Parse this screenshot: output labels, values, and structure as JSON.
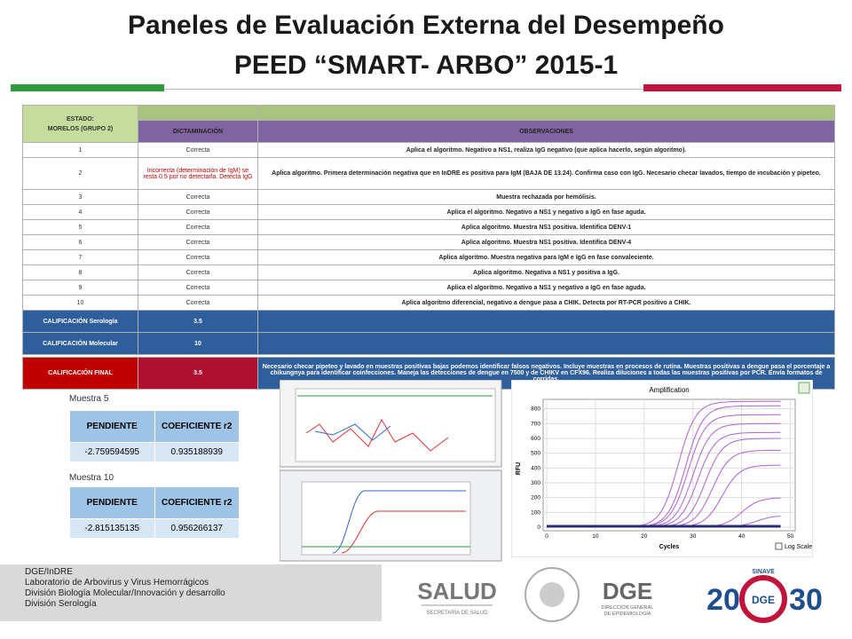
{
  "header": {
    "title_line1": "Paneles de Evaluación Externa del Desempeño",
    "title_line2": "PEED “SMART- ARBO” 2015-1"
  },
  "table": {
    "state_label": "ESTADO:",
    "state_value": "MORELOS (GRUPO 2)",
    "columns": [
      "DICTAMINACIÓN",
      "OBSERVACIONES"
    ],
    "rows": [
      [
        "1",
        "Correcta",
        "Aplica el algoritmo. Negativo a NS1, realiza IgG negativo (que aplica hacerlo, según algoritmo)."
      ],
      [
        "2",
        "Incorrecta (determinación de IgM) se resta 0.5 por no detectarla. Detecta IgG",
        "Aplica algoritmo. Primera determinación negativa que en InDRE es positiva para IgM (BAJA DE 13.24). Confirma caso con IgG. Necesario checar lavados, tiempo de incubación y pipeteo."
      ],
      [
        "3",
        "Correcta",
        "Muestra rechazada por hemólisis."
      ],
      [
        "4",
        "Correcta",
        "Aplica el algoritmo. Negativo a NS1 y negativo a IgG en fase aguda."
      ],
      [
        "5",
        "Correcta",
        "Aplica algoritmo. Muestra NS1 positiva. Identifica DENV-1"
      ],
      [
        "6",
        "Correcta",
        "Aplica algoritmo. Muestra NS1 positiva. Identifica DENV-4"
      ],
      [
        "7",
        "Correcta",
        "Aplica algoritmo. Muestra negativa para IgM e IgG en fase convaleciente."
      ],
      [
        "8",
        "Correcta",
        "Aplica algoritmo. Negativa a NS1 y positiva a IgG."
      ],
      [
        "9",
        "Correcta",
        "Aplica el algoritmo. Negativo a NS1 y negativo a IgG en fase aguda."
      ],
      [
        "10",
        "Correcta",
        "Aplica algoritmo diferencial, negativo a dengue pasa a CHIK. Detecta por RT-PCR positivo a CHIK."
      ]
    ],
    "scores": [
      {
        "label": "CALIFICACIÓN Serología",
        "value": 3.5
      },
      {
        "label": "CALIFICACIÓN Molecular",
        "value": 10
      }
    ],
    "final": {
      "label": "CALIFICACIÓN FINAL",
      "value": 3.5,
      "note": "Necesario checar pipeteo y lavado en muestras positivas bajas podemos identificar falsos negativos. Incluye muestras en procesos de rutina. Muestras positivas a dengue pasa el porcentaje a chikungnya para identificar coinfecciones. Maneja las detecciones de dengue en 7500 y de CHIKV en CFX96. Realiza diluciones a todas las muestras positivas por PCR. Envía formatos de corridas."
    }
  },
  "samples": [
    {
      "label": "Muestra 5",
      "headers": [
        "PENDIENTE",
        "COEFICIENTE r2"
      ],
      "values": [
        -2.759594595,
        0.935188939
      ]
    },
    {
      "label": "Muestra 10",
      "headers": [
        "PENDIENTE",
        "COEFICIENTE r2"
      ],
      "values": [
        -2.815135135,
        0.956266137
      ]
    }
  ],
  "amplification": {
    "title": "Amplification",
    "ylabel": "RFU",
    "xlabel": "Cycles",
    "yticks": [
      0,
      100,
      200,
      300,
      400,
      500,
      600,
      700,
      800
    ],
    "xticks": [
      0,
      10,
      20,
      30,
      40,
      50
    ],
    "log_scale": "Log Scale"
  },
  "footer": [
    "DGE/InDRE",
    "Laboratorio de Arbovirus y Virus Hemorrágicos",
    "División Biología Molecular/Innovación y desarrollo",
    "División Serología"
  ],
  "logos": {
    "salud": "SALUD",
    "salud_sub": "SECRETARÍA DE SALUD",
    "dge": "DGE",
    "dge_sub1": "DIRECCIÓN GENERAL",
    "dge_sub2": "DE EPIDEMIOLOGÍA",
    "left_year": "20",
    "center": "DGE",
    "right_year": "30",
    "sinave": "SINAVE"
  }
}
